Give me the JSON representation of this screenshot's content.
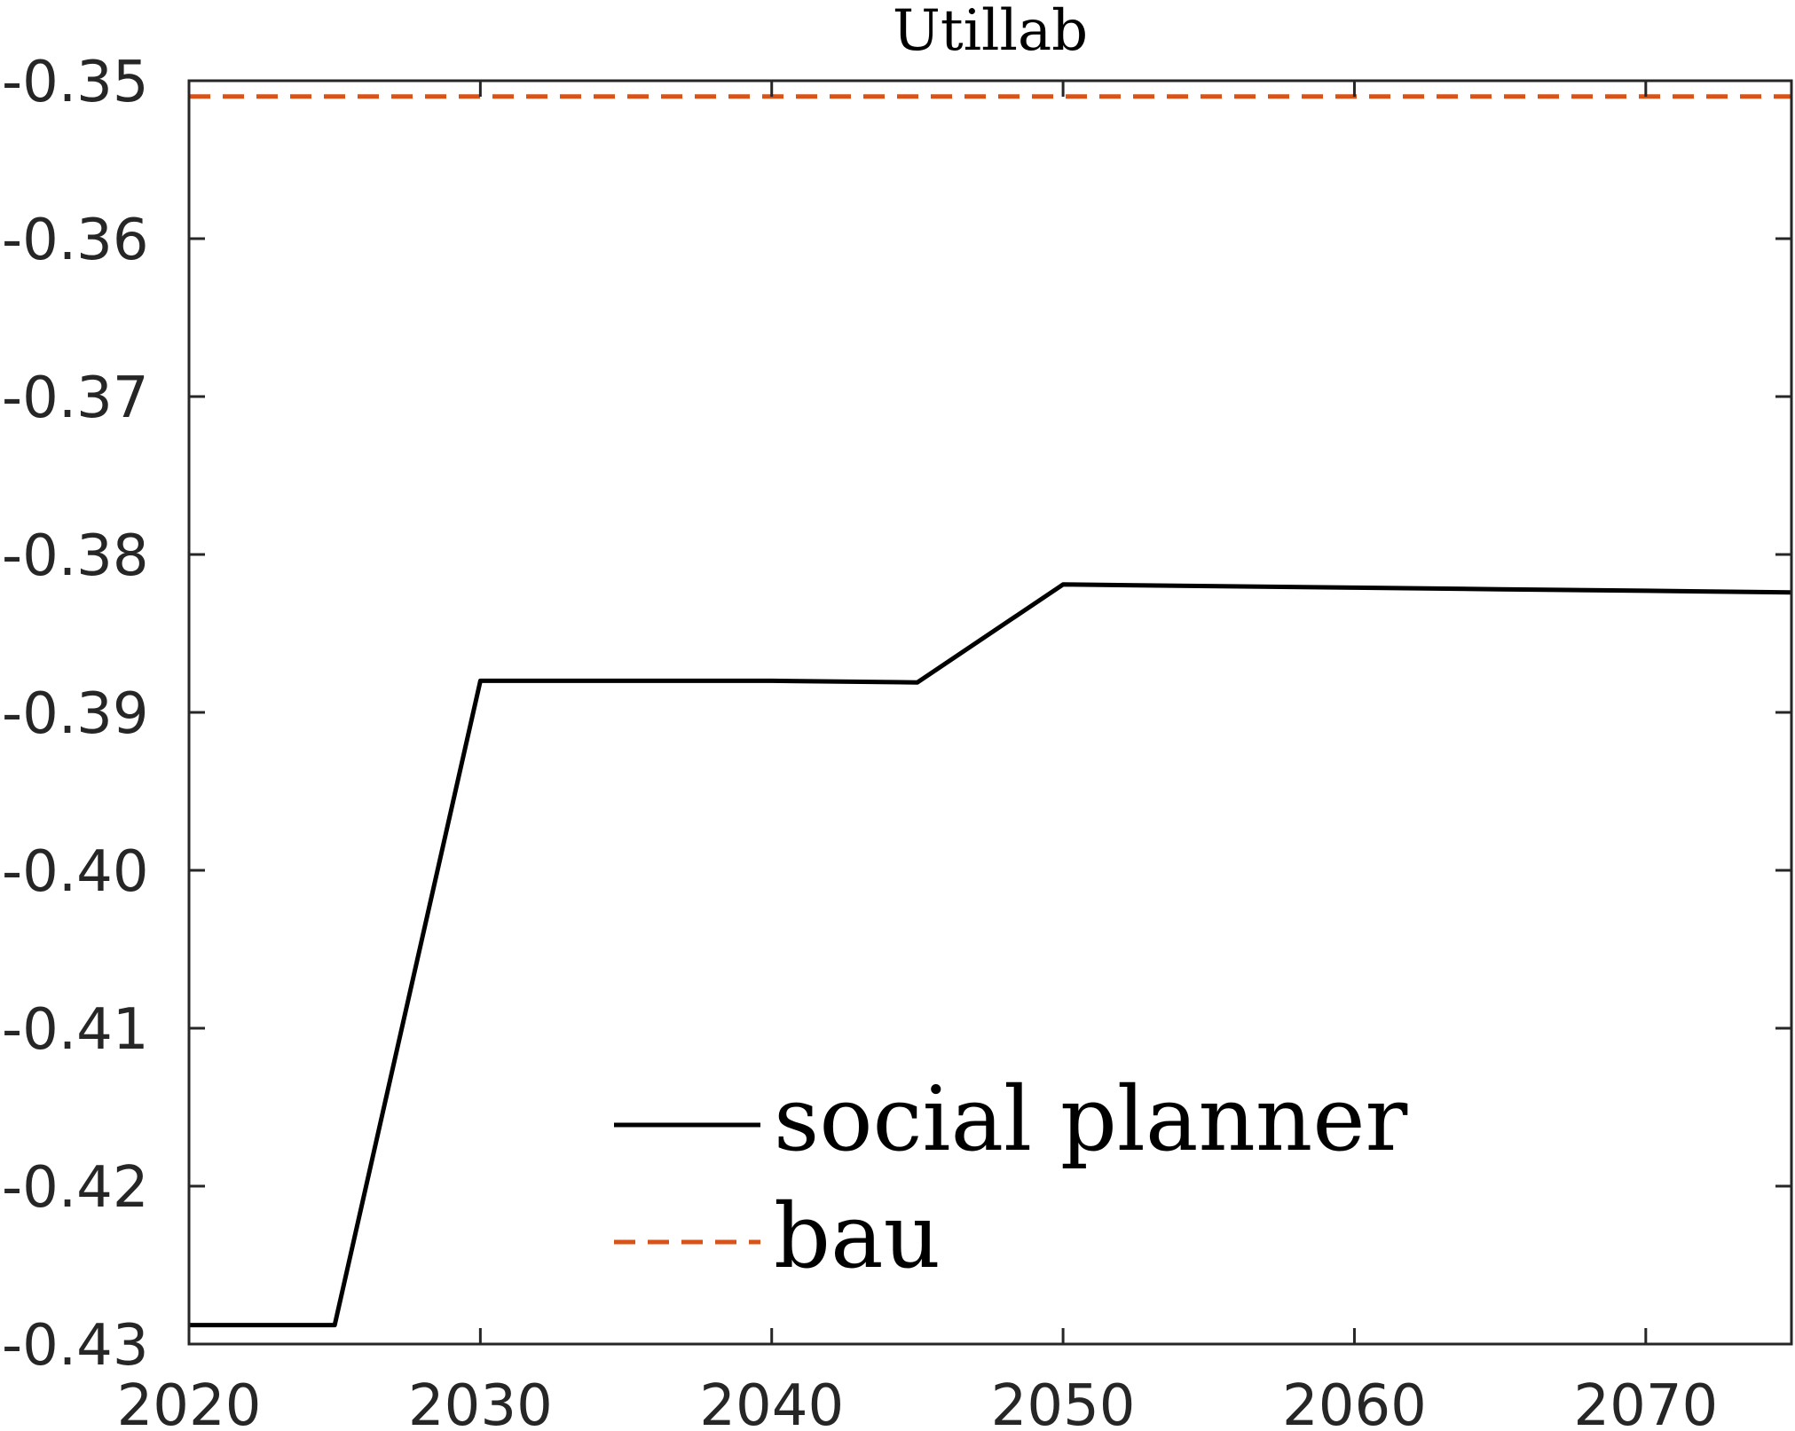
{
  "chart_data": {
    "type": "line",
    "title": "Utillab",
    "xlabel": "",
    "ylabel": "",
    "xlim": [
      2020,
      2075
    ],
    "ylim": [
      -0.43,
      -0.35
    ],
    "xticks": [
      2020,
      2030,
      2040,
      2050,
      2060,
      2070
    ],
    "yticks": [
      -0.35,
      -0.36,
      -0.37,
      -0.38,
      -0.39,
      -0.4,
      -0.41,
      -0.42,
      -0.43
    ],
    "ytick_labels": [
      "-0.35",
      "-0.36",
      "-0.37",
      "-0.38",
      "-0.39",
      "-0.40",
      "-0.41",
      "-0.42",
      "-0.43"
    ],
    "grid": false,
    "legend_position": "bottom-center",
    "series": [
      {
        "name": "social planner",
        "color": "#000000",
        "style": "solid",
        "x": [
          2020,
          2025,
          2030,
          2035,
          2040,
          2045,
          2050,
          2055,
          2060,
          2065,
          2070,
          2075
        ],
        "y": [
          -0.4288,
          -0.4288,
          -0.388,
          -0.388,
          -0.388,
          -0.3881,
          -0.3819,
          -0.382,
          -0.3821,
          -0.3822,
          -0.3823,
          -0.3824
        ]
      },
      {
        "name": "bau",
        "color": "#D95319",
        "style": "dashed",
        "x": [
          2020,
          2075
        ],
        "y": [
          -0.351,
          -0.351
        ]
      }
    ]
  }
}
